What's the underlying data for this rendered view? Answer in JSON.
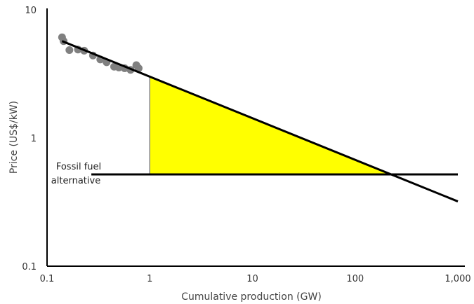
{
  "chart_data": {
    "type": "scatter",
    "title": "",
    "xlabel": "Cumulative production (GW)",
    "ylabel": "Price (US$/kW)",
    "xscale": "log",
    "yscale": "log",
    "xlim": [
      0.1,
      1000
    ],
    "ylim": [
      0.1,
      10
    ],
    "x_ticks": [
      {
        "value": 0.1,
        "label": "0.1"
      },
      {
        "value": 1,
        "label": "1"
      },
      {
        "value": 10,
        "label": "10"
      },
      {
        "value": 100,
        "label": "100"
      },
      {
        "value": 1000,
        "label": "1,000"
      }
    ],
    "y_ticks": [
      {
        "value": 0.1,
        "label": "0.1"
      },
      {
        "value": 1,
        "label": "1"
      },
      {
        "value": 10,
        "label": "10"
      }
    ],
    "grid": false,
    "legend": "none",
    "series": [
      {
        "type": "scatter",
        "color": "#808080",
        "points": [
          {
            "x": 0.14,
            "y": 6.1
          },
          {
            "x": 0.145,
            "y": 5.7
          },
          {
            "x": 0.165,
            "y": 4.85
          },
          {
            "x": 0.2,
            "y": 4.9
          },
          {
            "x": 0.23,
            "y": 4.8
          },
          {
            "x": 0.28,
            "y": 4.4
          },
          {
            "x": 0.33,
            "y": 4.1
          },
          {
            "x": 0.38,
            "y": 3.9
          },
          {
            "x": 0.45,
            "y": 3.6
          },
          {
            "x": 0.5,
            "y": 3.55
          },
          {
            "x": 0.57,
            "y": 3.5
          },
          {
            "x": 0.65,
            "y": 3.4
          },
          {
            "x": 0.74,
            "y": 3.7
          },
          {
            "x": 0.78,
            "y": 3.5
          }
        ]
      }
    ],
    "experience_curve": {
      "color": "#000000",
      "points": [
        {
          "x": 0.14,
          "y": 5.7
        },
        {
          "x": 1000,
          "y": 0.32
        }
      ]
    },
    "fossil_fuel": {
      "label_line1": "Fossil fuel",
      "label_line2": "alternative",
      "y": 0.52,
      "x_start": 0.27,
      "x_end": 1000,
      "color": "#000000"
    },
    "learning_investment": {
      "fill": "#FFFF00",
      "x_start": 1,
      "x_end": 220,
      "top_y": 3.0,
      "bottom_y": 0.52
    }
  }
}
